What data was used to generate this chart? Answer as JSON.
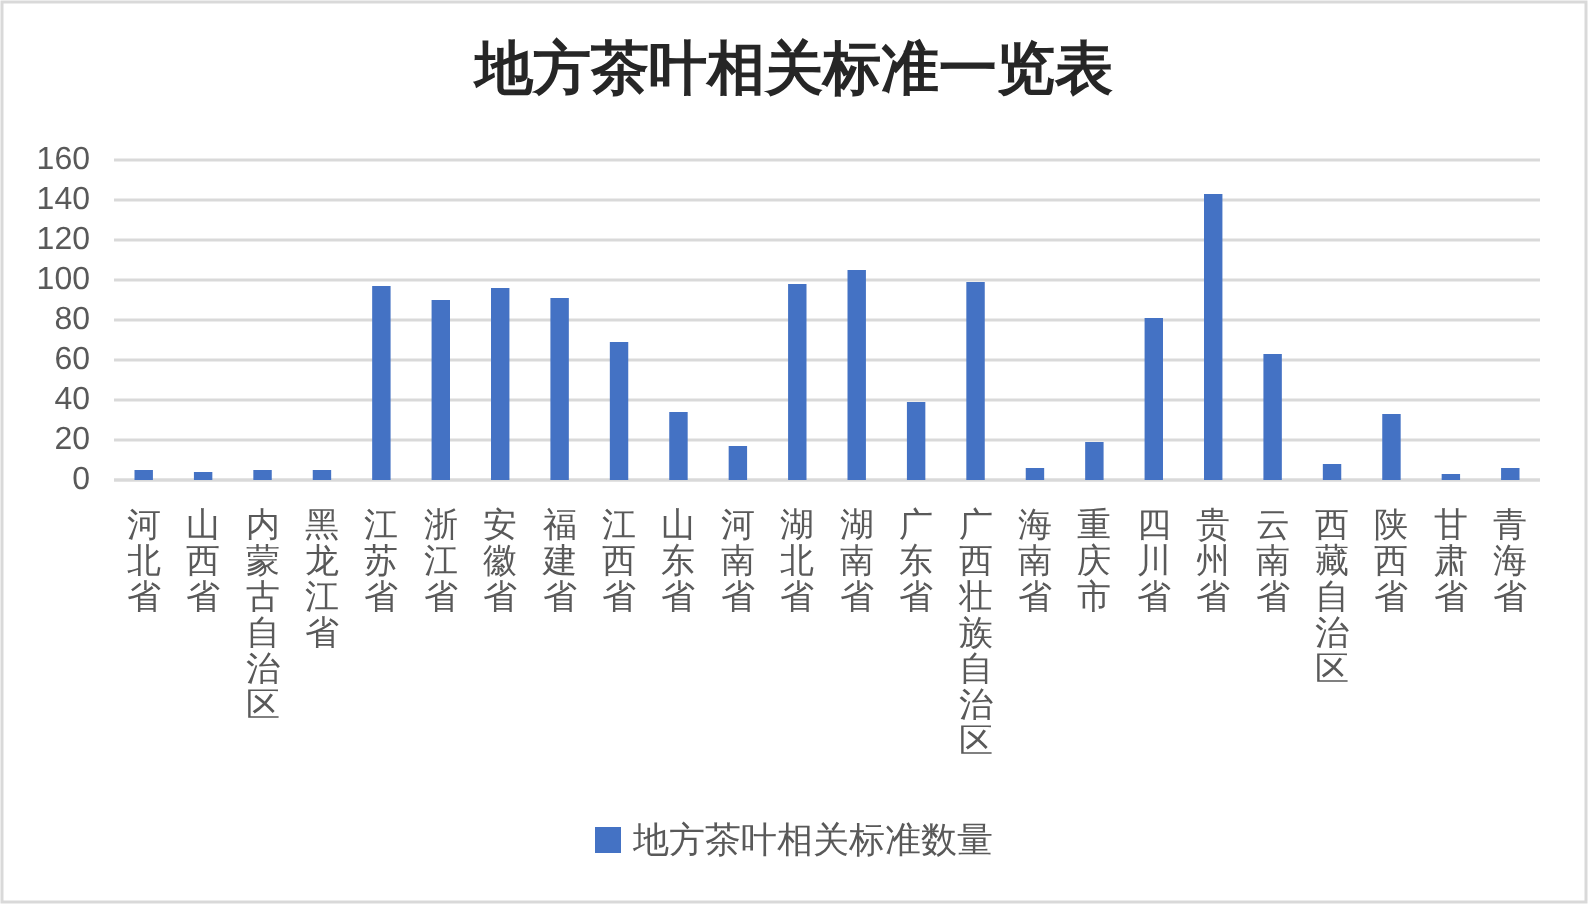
{
  "chart_data": {
    "type": "bar",
    "title": "地方茶叶相关标准一览表",
    "categories": [
      "河北省",
      "山西省",
      "内蒙古自治区",
      "黑龙江省",
      "江苏省",
      "浙江省",
      "安徽省",
      "福建省",
      "江西省",
      "山东省",
      "河南省",
      "湖北省",
      "湖南省",
      "广东省",
      "广西壮族自治区",
      "海南省",
      "重庆市",
      "四川省",
      "贵州省",
      "云南省",
      "西藏自治区",
      "陕西省",
      "甘肃省",
      "青海省"
    ],
    "series": [
      {
        "name": "地方茶叶相关标准数量",
        "color": "#4472c4",
        "values": [
          5,
          4,
          5,
          5,
          97,
          90,
          96,
          91,
          69,
          34,
          17,
          98,
          105,
          39,
          99,
          6,
          19,
          81,
          143,
          63,
          8,
          33,
          3,
          6
        ]
      }
    ],
    "ylim": [
      0,
      160
    ],
    "yticks": [
      0,
      20,
      40,
      60,
      80,
      100,
      120,
      140,
      160
    ],
    "grid": "y",
    "legend": "bottom"
  }
}
